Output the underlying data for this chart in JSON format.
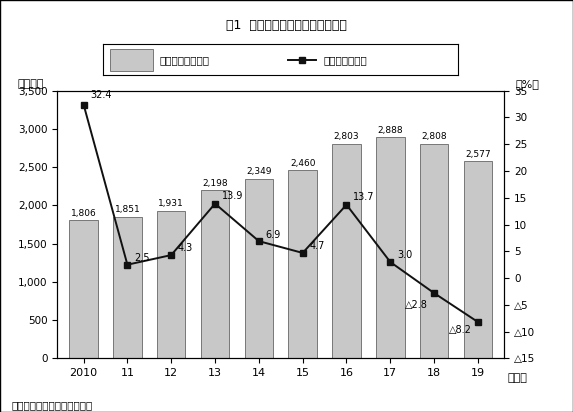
{
  "title": "図1  中国の自動車販売台数の推移",
  "xlabel_unit": "（年）",
  "ylabel_left": "（万台）",
  "ylabel_right": "（%）",
  "source": "（出所）中国自動車工業協会",
  "x_labels": [
    "2010",
    "11",
    "12",
    "13",
    "14",
    "15",
    "16",
    "17",
    "18",
    "19"
  ],
  "bar_values": [
    1806,
    1851,
    1931,
    2198,
    2349,
    2460,
    2803,
    2888,
    2808,
    2577
  ],
  "bar_labels": [
    "1,806",
    "1,851",
    "1,931",
    "2,198",
    "2,349",
    "2,460",
    "2,803",
    "2,888",
    "2,808",
    "2,577"
  ],
  "line_values": [
    32.4,
    2.5,
    4.3,
    13.9,
    6.9,
    4.7,
    13.7,
    3.0,
    -2.8,
    -8.2
  ],
  "line_labels": [
    "32.4",
    "2.5",
    "4.3",
    "13.9",
    "6.9",
    "4.7",
    "13.7",
    "3.0",
    "△2.8",
    "△8.2"
  ],
  "bar_color": "#c8c8c8",
  "bar_edge_color": "#666666",
  "line_color": "#111111",
  "marker_style": "s",
  "marker_size": 5,
  "ylim_left": [
    0,
    3500
  ],
  "ylim_right": [
    -15,
    35
  ],
  "yticks_left": [
    0,
    500,
    1000,
    1500,
    2000,
    2500,
    3000,
    3500
  ],
  "ytick_left_labels": [
    "0",
    "500",
    "1,000",
    "1,500",
    "2,000",
    "2,500",
    "3,000",
    "3,500"
  ],
  "yticks_right": [
    35,
    30,
    25,
    20,
    15,
    10,
    5,
    0,
    -5,
    -10,
    -15
  ],
  "ytick_right_labels": [
    "35",
    "30",
    "25",
    "20",
    "15",
    "10",
    "5",
    "0",
    "△5",
    "△10",
    "△15"
  ],
  "legend_bar_label": "販売台数（左軸）",
  "legend_line_label": "前年比（右軸）",
  "background_color": "#ffffff",
  "border_color": "#000000"
}
